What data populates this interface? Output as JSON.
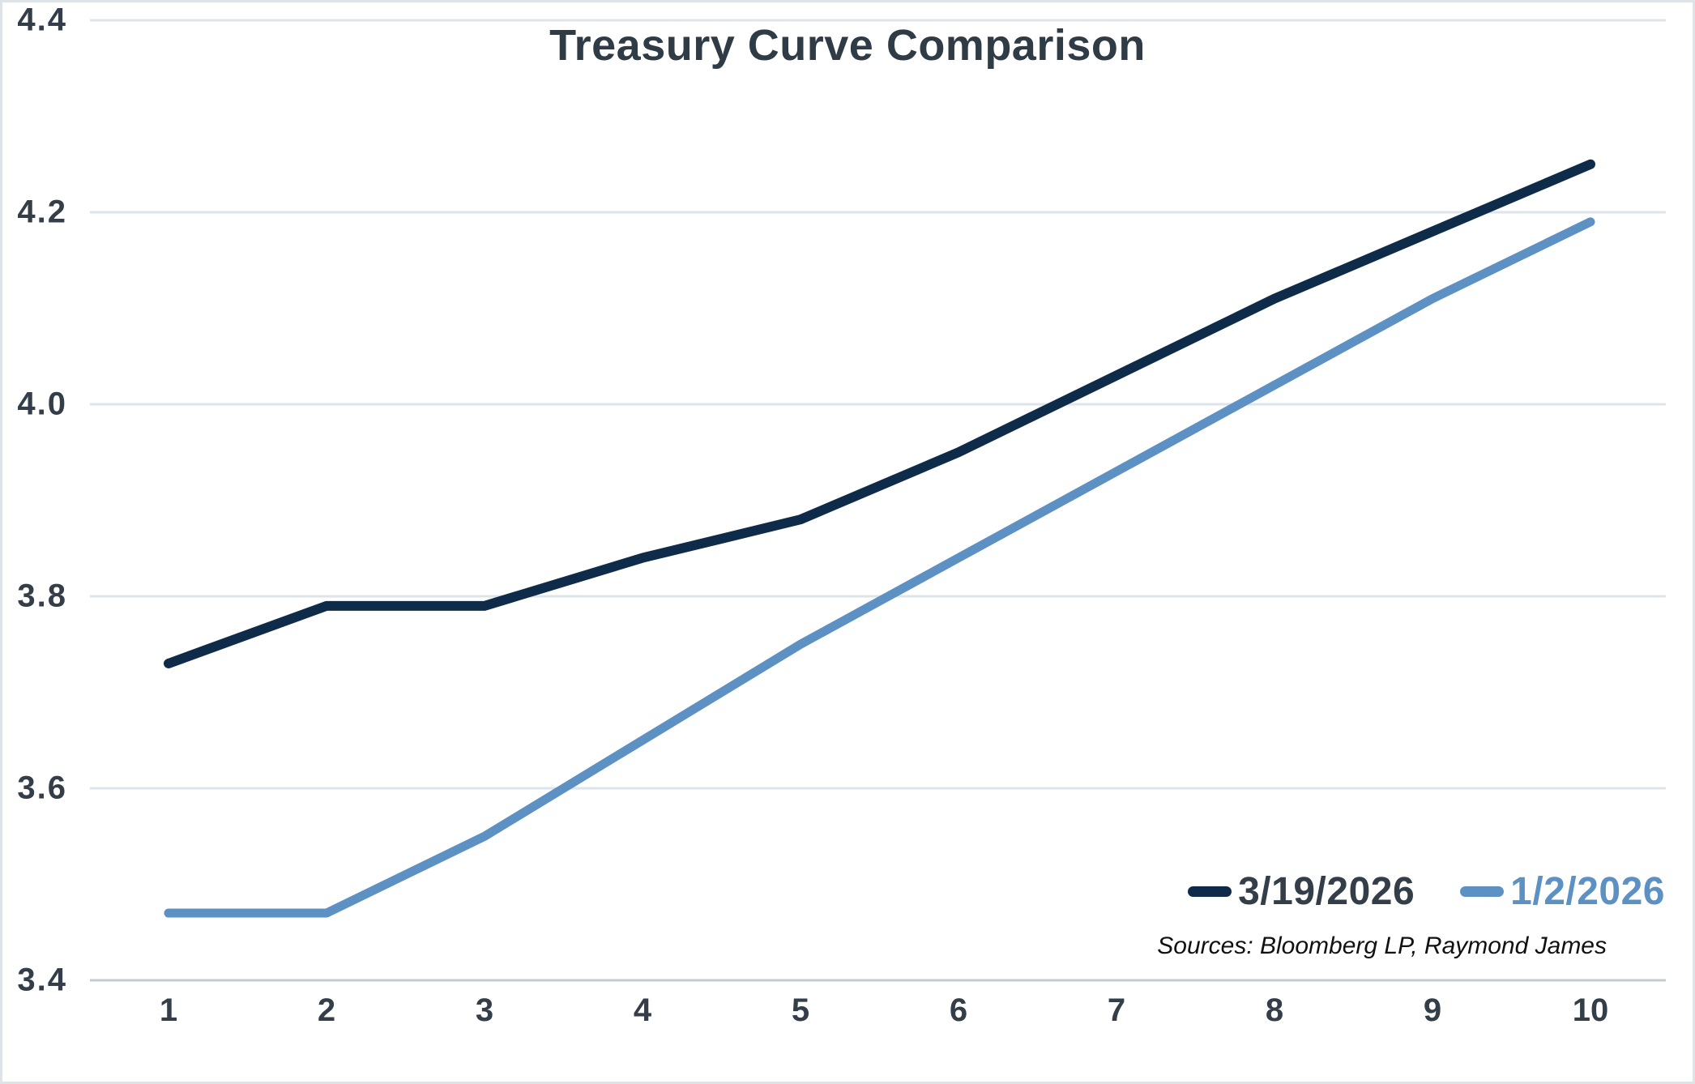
{
  "chart_data": {
    "type": "line",
    "title": "Treasury Curve Comparison",
    "xlabel": "",
    "ylabel": "",
    "x_categories": [
      "1",
      "2",
      "3",
      "4",
      "5",
      "6",
      "7",
      "8",
      "9",
      "10"
    ],
    "ylim": [
      3.4,
      4.4
    ],
    "y_tick_labels": [
      "4.4",
      "4.2",
      "4.0",
      "3.8",
      "3.6",
      "3.4"
    ],
    "y_tick_values": [
      4.4,
      4.2,
      4.0,
      3.8,
      3.6,
      3.4
    ],
    "grid": "horizontal",
    "legend_position": "bottom-right",
    "series": [
      {
        "name": "3/19/2026",
        "color": "#0E2B4A",
        "values": [
          3.73,
          3.79,
          3.79,
          3.84,
          3.88,
          3.95,
          4.03,
          4.11,
          4.18,
          4.25
        ]
      },
      {
        "name": "1/2/2026",
        "color": "#5E91C3",
        "values": [
          3.47,
          3.47,
          3.55,
          3.65,
          3.75,
          3.84,
          3.93,
          4.02,
          4.11,
          4.19
        ]
      }
    ],
    "sources": "Sources: Bloomberg LP, Raymond James"
  },
  "colors": {
    "text": "#333E48",
    "gridline": "#DEE5EA",
    "bottom_axis": "#C2CBD2",
    "background": "#FFFFFF",
    "border": "#DDE3E7"
  }
}
